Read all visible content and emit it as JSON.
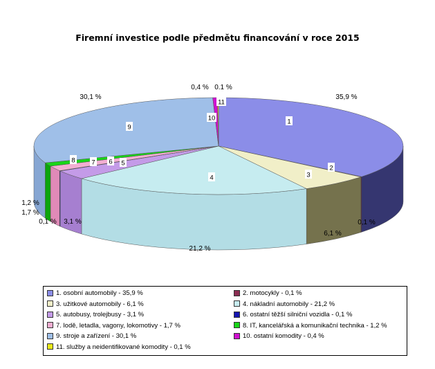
{
  "chart_data": {
    "type": "pie",
    "title": "Firemní investice podle předmětu financování v roce 2015",
    "slices": [
      {
        "num": "1",
        "legend": "1. osobní automobily - 35,9 %",
        "label": "35,9 %",
        "value": 35.9,
        "color": "#8b8de8",
        "side": "#353670"
      },
      {
        "num": "2",
        "legend": "2. motocykly - 0,1 %",
        "label": "0,1 %",
        "value": 0.1,
        "color": "#8b2d52",
        "side": "#4a1530"
      },
      {
        "num": "3",
        "legend": "3. užitkové automobily - 6,1 %",
        "label": "6,1 %",
        "value": 6.1,
        "color": "#f1efc8",
        "side": "#75724d"
      },
      {
        "num": "4",
        "legend": "4. nákladní automobily - 21,2 %",
        "label": "21,2 %",
        "value": 21.2,
        "color": "#c6ecf0",
        "side": "#b3dde5"
      },
      {
        "num": "5",
        "legend": "5. autobusy, trolejbusy - 3,1 %",
        "label": "3,1 %",
        "value": 3.1,
        "color": "#c49be8",
        "side": "#a67fd0"
      },
      {
        "num": "6",
        "legend": "6. ostatní těžší silniční vozidla - 0,1 %",
        "label": "0,1 %",
        "value": 0.1,
        "color": "#1515b0",
        "side": "#0c0c70"
      },
      {
        "num": "7",
        "legend": "7. lodě, letadla, vagony, lokomotivy - 1,7 %",
        "label": "1,7 %",
        "value": 1.7,
        "color": "#f3aed2",
        "side": "#e08ab8"
      },
      {
        "num": "8",
        "legend": "8. IT, kancelářská a komunikační technika - 1,2 %",
        "label": "1,2 %",
        "value": 1.2,
        "color": "#19d519",
        "side": "#0ca50c"
      },
      {
        "num": "9",
        "legend": "9. stroje a zařízení - 30,1 %",
        "label": "30,1 %",
        "value": 30.1,
        "color": "#9fbfe8",
        "side": "#86a6d3"
      },
      {
        "num": "10",
        "legend": "10. ostatní komodity - 0,4 %",
        "label": "0,4 %",
        "value": 0.4,
        "color": "#cf11cf",
        "side": "#900090"
      },
      {
        "num": "11",
        "legend": "11. služby a neidentifikované komodity - 0,1 %",
        "label": "0.1 %",
        "value": 0.1,
        "color": "#e8e81a",
        "side": "#a8a810"
      }
    ]
  }
}
